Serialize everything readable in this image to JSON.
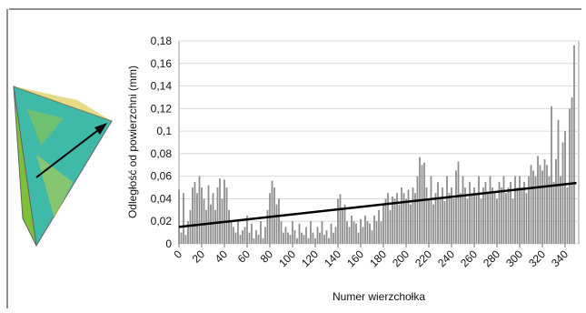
{
  "chart_data": {
    "type": "bar",
    "y_label": "Odległość od powierzchni (mm)",
    "x_label": "Numer wierzchołka",
    "color": "#8f8f8f",
    "xlim": [
      0,
      352
    ],
    "ylim": [
      0,
      0.18
    ],
    "xticks": [
      0,
      20,
      40,
      60,
      80,
      100,
      120,
      140,
      160,
      180,
      200,
      220,
      240,
      260,
      280,
      300,
      320,
      340
    ],
    "yticks": [
      {
        "value": 0,
        "label": "0"
      },
      {
        "value": 0.02,
        "label": "0,02"
      },
      {
        "value": 0.04,
        "label": "0,04"
      },
      {
        "value": 0.06,
        "label": "0,06"
      },
      {
        "value": 0.08,
        "label": "0,08"
      },
      {
        "value": 0.1,
        "label": "0,1"
      },
      {
        "value": 0.12,
        "label": "0,12"
      },
      {
        "value": 0.14,
        "label": "0,14"
      },
      {
        "value": 0.16,
        "label": "0,16"
      },
      {
        "value": 0.18,
        "label": "0,18"
      }
    ],
    "grid": true,
    "x": [
      0,
      2,
      4,
      6,
      8,
      10,
      12,
      14,
      16,
      18,
      20,
      22,
      24,
      26,
      28,
      30,
      32,
      34,
      36,
      38,
      40,
      42,
      44,
      46,
      48,
      50,
      52,
      54,
      56,
      58,
      60,
      62,
      64,
      66,
      68,
      70,
      72,
      74,
      76,
      78,
      80,
      82,
      84,
      86,
      88,
      90,
      92,
      94,
      96,
      98,
      100,
      102,
      104,
      106,
      108,
      110,
      112,
      114,
      116,
      118,
      120,
      122,
      124,
      126,
      128,
      130,
      132,
      134,
      136,
      138,
      140,
      142,
      144,
      146,
      148,
      150,
      152,
      154,
      156,
      158,
      160,
      162,
      164,
      166,
      168,
      170,
      172,
      174,
      176,
      178,
      180,
      182,
      184,
      186,
      188,
      190,
      192,
      194,
      196,
      198,
      200,
      202,
      204,
      206,
      208,
      210,
      212,
      214,
      216,
      218,
      220,
      222,
      224,
      226,
      228,
      230,
      232,
      234,
      236,
      238,
      240,
      242,
      244,
      246,
      248,
      250,
      252,
      254,
      256,
      258,
      260,
      262,
      264,
      266,
      268,
      270,
      272,
      274,
      276,
      278,
      280,
      282,
      284,
      286,
      288,
      290,
      292,
      294,
      296,
      298,
      300,
      302,
      304,
      306,
      308,
      310,
      312,
      314,
      316,
      318,
      320,
      322,
      324,
      326,
      328,
      330,
      332,
      334,
      336,
      338,
      340,
      342,
      344,
      346,
      348
    ],
    "values": [
      0.048,
      0.01,
      0.045,
      0.008,
      0.02,
      0.03,
      0.05,
      0.055,
      0.045,
      0.06,
      0.05,
      0.04,
      0.03,
      0.052,
      0.035,
      0.045,
      0.03,
      0.05,
      0.058,
      0.04,
      0.057,
      0.05,
      0.03,
      0.02,
      0.015,
      0.01,
      0.02,
      0.008,
      0.012,
      0.015,
      0.025,
      0.01,
      0.018,
      0.005,
      0.012,
      0.008,
      0.02,
      0.005,
      0.015,
      0.03,
      0.045,
      0.056,
      0.05,
      0.035,
      0.04,
      0.02,
      0.01,
      0.015,
      0.01,
      0.008,
      0.02,
      0.012,
      0.005,
      0.018,
      0.01,
      0.008,
      0.015,
      0.005,
      0.02,
      0.01,
      0.005,
      0.015,
      0.01,
      0.02,
      0.008,
      0.012,
      0.005,
      0.018,
      0.01,
      0.015,
      0.04,
      0.044,
      0.03,
      0.035,
      0.02,
      0.015,
      0.025,
      0.02,
      0.018,
      0.01,
      0.022,
      0.015,
      0.025,
      0.02,
      0.018,
      0.012,
      0.025,
      0.02,
      0.03,
      0.02,
      0.035,
      0.04,
      0.045,
      0.03,
      0.042,
      0.04,
      0.045,
      0.035,
      0.05,
      0.045,
      0.04,
      0.048,
      0.035,
      0.05,
      0.045,
      0.06,
      0.077,
      0.07,
      0.072,
      0.05,
      0.04,
      0.06,
      0.035,
      0.045,
      0.055,
      0.04,
      0.05,
      0.038,
      0.06,
      0.045,
      0.05,
      0.04,
      0.065,
      0.073,
      0.045,
      0.06,
      0.05,
      0.04,
      0.055,
      0.045,
      0.05,
      0.045,
      0.06,
      0.04,
      0.05,
      0.055,
      0.045,
      0.06,
      0.05,
      0.045,
      0.04,
      0.055,
      0.05,
      0.06,
      0.045,
      0.05,
      0.055,
      0.04,
      0.06,
      0.05,
      0.06,
      0.05,
      0.055,
      0.045,
      0.06,
      0.07,
      0.065,
      0.06,
      0.078,
      0.07,
      0.065,
      0.075,
      0.07,
      0.06,
      0.122,
      0.055,
      0.075,
      0.11,
      0.06,
      0.09,
      0.1,
      0.05,
      0.12,
      0.13,
      0.176
    ],
    "trend": {
      "x": [
        0,
        350
      ],
      "values": [
        0.015,
        0.054
      ],
      "color": "#000000"
    }
  }
}
